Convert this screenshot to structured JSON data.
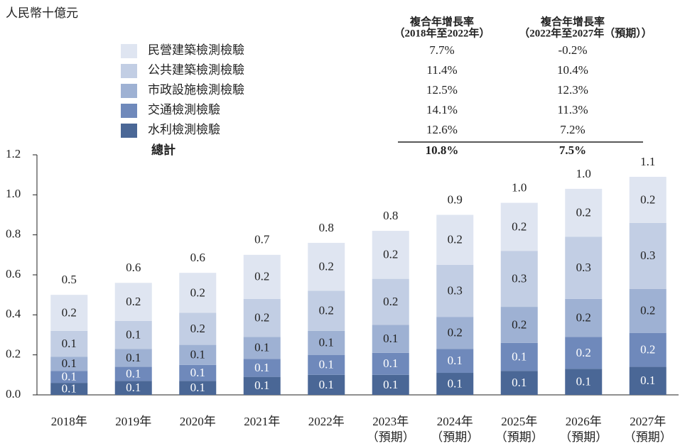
{
  "chart_data": {
    "type": "stacked_bar",
    "unit_label": "人民幣十億元",
    "categories": [
      "2018年",
      "2019年",
      "2020年",
      "2021年",
      "2022年",
      "2023年",
      "2024年",
      "2025年",
      "2026年",
      "2027年"
    ],
    "category_notes": [
      null,
      null,
      null,
      null,
      null,
      "（預期）",
      "（預期）",
      "（預期）",
      "（預期）",
      "（預期）"
    ],
    "series": [
      {
        "name": "水利檢測檢驗",
        "color": "#4a6796",
        "cagr": [
          "12.6%",
          "7.2%"
        ],
        "values": [
          0.06,
          0.07,
          0.07,
          0.09,
          0.1,
          0.1,
          0.11,
          0.12,
          0.13,
          0.14
        ],
        "value_labels": [
          "0.1",
          "0.1",
          "0.1",
          "0.1",
          "0.1",
          "0.1",
          "0.1",
          "0.1",
          "0.1",
          "0.1"
        ]
      },
      {
        "name": "交通檢測檢驗",
        "color": "#6f89bb",
        "cagr": [
          "14.1%",
          "11.3%"
        ],
        "values": [
          0.06,
          0.07,
          0.08,
          0.09,
          0.1,
          0.11,
          0.12,
          0.14,
          0.16,
          0.17
        ],
        "value_labels": [
          "0.1",
          "0.1",
          "0.1",
          "0.1",
          "0.1",
          "0.1",
          "0.1",
          "0.1",
          "0.2",
          "0.2"
        ]
      },
      {
        "name": "市政設施檢測檢驗",
        "color": "#9eb1d3",
        "cagr": [
          "12.5%",
          "12.3%"
        ],
        "values": [
          0.07,
          0.09,
          0.1,
          0.11,
          0.12,
          0.14,
          0.16,
          0.18,
          0.19,
          0.22
        ],
        "value_labels": [
          "0.1",
          "0.1",
          "0.1",
          "0.1",
          "0.1",
          "0.1",
          "0.2",
          "0.2",
          "0.2",
          "0.2"
        ]
      },
      {
        "name": "公共建築檢測檢驗",
        "color": "#c2cee4",
        "cagr": [
          "11.4%",
          "10.4%"
        ],
        "values": [
          0.13,
          0.14,
          0.16,
          0.19,
          0.2,
          0.23,
          0.26,
          0.28,
          0.31,
          0.33
        ],
        "value_labels": [
          "0.1",
          "0.1",
          "0.2",
          "0.2",
          "0.2",
          "0.2",
          "0.3",
          "0.3",
          "0.3",
          "0.3"
        ]
      },
      {
        "name": "民營建築檢測檢驗",
        "color": "#dfe5f1",
        "cagr": [
          "7.7%",
          "-0.2%"
        ],
        "values": [
          0.18,
          0.19,
          0.2,
          0.22,
          0.24,
          0.24,
          0.25,
          0.24,
          0.24,
          0.23
        ],
        "value_labels": [
          "0.2",
          "0.2",
          "0.2",
          "0.2",
          "0.2",
          "0.2",
          "0.2",
          "0.2",
          "0.2",
          "0.2"
        ]
      }
    ],
    "totals": [
      0.5,
      0.56,
      0.61,
      0.7,
      0.76,
      0.82,
      0.9,
      0.96,
      1.03,
      1.09
    ],
    "total_labels": [
      "0.5",
      "0.6",
      "0.6",
      "0.7",
      "0.8",
      "0.8",
      "0.9",
      "1.0",
      "1.0",
      "1.1"
    ],
    "cagr_headers": [
      [
        "複合年增長率",
        "（2018年至2022年）"
      ],
      [
        "複合年增長率",
        "（2022年至2027年（預期））"
      ]
    ],
    "cagr_total": {
      "label": "總計",
      "values": [
        "10.8%",
        "7.5%"
      ]
    },
    "ylim": [
      0,
      1.2
    ],
    "yticks": [
      {
        "value": 0,
        "label": "0.0"
      },
      0.2,
      0.4,
      0.6,
      0.8,
      {
        "value": 1,
        "label": "1.0"
      },
      1.2
    ]
  }
}
